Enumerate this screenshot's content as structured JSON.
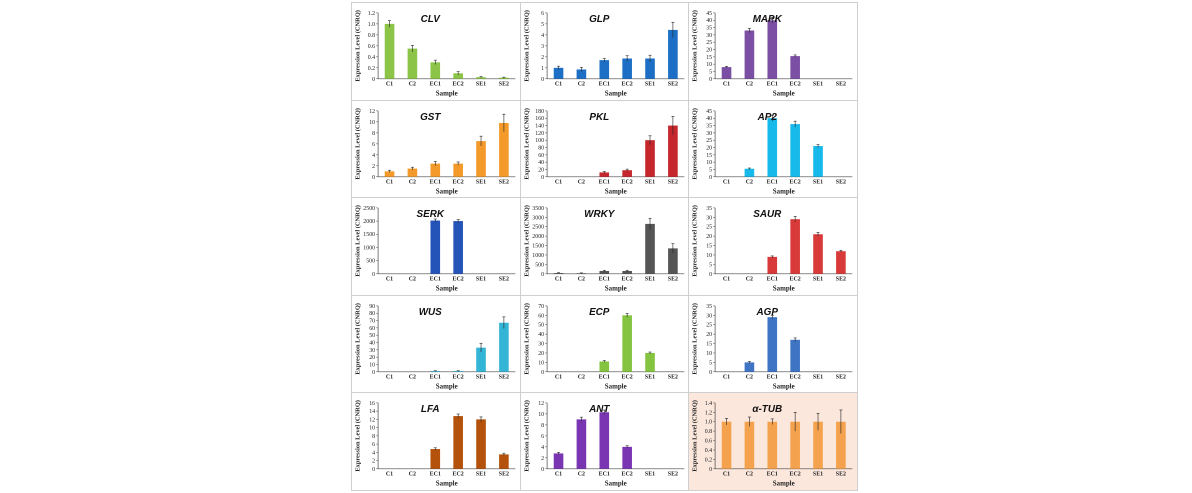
{
  "figure": {
    "ylabel": "Expression Level (CNRQ)",
    "xlabel": "Sample",
    "categories": [
      "C1",
      "C2",
      "EC1",
      "EC2",
      "SE1",
      "SE2"
    ]
  },
  "chart_data": [
    {
      "type": "bar",
      "title": "CLV",
      "categories": [
        "C1",
        "C2",
        "EC1",
        "EC2",
        "SE1",
        "SE2"
      ],
      "values": [
        1.0,
        0.55,
        0.3,
        0.1,
        0.03,
        0.02
      ],
      "errors": [
        0.06,
        0.06,
        0.04,
        0.03,
        0.01,
        0.01
      ],
      "ylim": [
        0,
        1.2
      ],
      "yticks": [
        "0",
        "0.2",
        "0.4",
        "0.6",
        "0.8",
        "1.0",
        "1.2"
      ],
      "color": "#8cc447",
      "xlabel": "Sample",
      "ylabel": "Expression Level (CNRQ)"
    },
    {
      "type": "bar",
      "title": "GLP",
      "categories": [
        "C1",
        "C2",
        "EC1",
        "EC2",
        "SE1",
        "SE2"
      ],
      "values": [
        1.0,
        0.85,
        1.7,
        1.85,
        1.85,
        4.45
      ],
      "errors": [
        0.15,
        0.2,
        0.15,
        0.25,
        0.3,
        0.7
      ],
      "ylim": [
        0,
        6
      ],
      "yticks": [
        "0",
        "1",
        "2",
        "3",
        "4",
        "5",
        "6"
      ],
      "color": "#1c6fc4",
      "xlabel": "Sample",
      "ylabel": "Expression Level (CNRQ)"
    },
    {
      "type": "bar",
      "title": "MAPK",
      "categories": [
        "C1",
        "C2",
        "EC1",
        "EC2",
        "SE1",
        "SE2"
      ],
      "values": [
        8,
        33,
        40,
        15.5,
        0,
        0
      ],
      "errors": [
        0.5,
        1.5,
        2,
        0.8,
        0,
        0
      ],
      "ylim": [
        0,
        45
      ],
      "yticks": [
        "0",
        "5",
        "10",
        "15",
        "20",
        "25",
        "30",
        "35",
        "40",
        "45"
      ],
      "color": "#7b4fa3",
      "xlabel": "Sample",
      "ylabel": "Expression Level (CNRQ)"
    },
    {
      "type": "bar",
      "title": "GST",
      "categories": [
        "C1",
        "C2",
        "EC1",
        "EC2",
        "SE1",
        "SE2"
      ],
      "values": [
        1.0,
        1.5,
        2.4,
        2.4,
        6.5,
        9.8
      ],
      "errors": [
        0.2,
        0.25,
        0.4,
        0.3,
        0.9,
        1.6
      ],
      "ylim": [
        0,
        12
      ],
      "yticks": [
        "0",
        "2",
        "4",
        "6",
        "8",
        "10",
        "12"
      ],
      "color": "#f39a2b",
      "xlabel": "Sample",
      "ylabel": "Expression Level (CNRQ)"
    },
    {
      "type": "bar",
      "title": "PKL",
      "categories": [
        "C1",
        "C2",
        "EC1",
        "EC2",
        "SE1",
        "SE2"
      ],
      "values": [
        0,
        0,
        12,
        18,
        100,
        140
      ],
      "errors": [
        0,
        0,
        3,
        3,
        12,
        25
      ],
      "ylim": [
        0,
        180
      ],
      "yticks": [
        "0",
        "20",
        "40",
        "60",
        "80",
        "100",
        "120",
        "140",
        "160",
        "180"
      ],
      "color": "#c5272c",
      "xlabel": "Sample",
      "ylabel": "Expression Level (CNRQ)"
    },
    {
      "type": "bar",
      "title": "AP2",
      "categories": [
        "C1",
        "C2",
        "EC1",
        "EC2",
        "SE1",
        "SE2"
      ],
      "values": [
        0,
        5.5,
        40,
        36,
        21,
        0
      ],
      "errors": [
        0,
        0.5,
        2,
        2,
        1,
        0
      ],
      "ylim": [
        0,
        45
      ],
      "yticks": [
        "0",
        "5",
        "10",
        "15",
        "20",
        "25",
        "30",
        "35",
        "40",
        "45"
      ],
      "color": "#17b8ea",
      "xlabel": "Sample",
      "ylabel": "Expression Level (CNRQ)"
    },
    {
      "type": "bar",
      "title": "SERK",
      "categories": [
        "C1",
        "C2",
        "EC1",
        "EC2",
        "SE1",
        "SE2"
      ],
      "values": [
        0,
        0,
        2020,
        2000,
        0,
        0
      ],
      "errors": [
        0,
        0,
        60,
        60,
        0,
        0
      ],
      "ylim": [
        0,
        2500
      ],
      "yticks": [
        "0",
        "500",
        "1000",
        "1500",
        "2000",
        "2500"
      ],
      "color": "#2554b8",
      "xlabel": "Sample",
      "ylabel": "Expression Level (CNRQ)"
    },
    {
      "type": "bar",
      "title": "WRKY",
      "categories": [
        "C1",
        "C2",
        "EC1",
        "EC2",
        "SE1",
        "SE2"
      ],
      "values": [
        40,
        30,
        150,
        150,
        2650,
        1350
      ],
      "errors": [
        20,
        20,
        40,
        40,
        300,
        250
      ],
      "ylim": [
        0,
        3500
      ],
      "yticks": [
        "0",
        "500",
        "1000",
        "1500",
        "2000",
        "2500",
        "3000",
        "3500"
      ],
      "color": "#555555",
      "xlabel": "Sample",
      "ylabel": "Expression Level (CNRQ)"
    },
    {
      "type": "bar",
      "title": "SAUR",
      "categories": [
        "C1",
        "C2",
        "EC1",
        "EC2",
        "SE1",
        "SE2"
      ],
      "values": [
        0,
        0,
        9,
        29,
        21,
        12
      ],
      "errors": [
        0,
        0,
        0.5,
        1.5,
        1,
        0.5
      ],
      "ylim": [
        0,
        35
      ],
      "yticks": [
        "0",
        "5",
        "10",
        "15",
        "20",
        "25",
        "30",
        "35"
      ],
      "color": "#d83a3a",
      "xlabel": "Sample",
      "ylabel": "Expression Level (CNRQ)"
    },
    {
      "type": "bar",
      "title": "WUS",
      "categories": [
        "C1",
        "C2",
        "EC1",
        "EC2",
        "SE1",
        "SE2"
      ],
      "values": [
        0,
        0,
        1,
        1,
        33,
        67
      ],
      "errors": [
        0,
        0,
        0.5,
        0.5,
        6,
        8
      ],
      "ylim": [
        0,
        90
      ],
      "yticks": [
        "0",
        "10",
        "20",
        "30",
        "40",
        "50",
        "60",
        "70",
        "80",
        "90"
      ],
      "color": "#35b5d6",
      "xlabel": "Sample",
      "ylabel": "Expression Level (CNRQ)"
    },
    {
      "type": "bar",
      "title": "ECP",
      "categories": [
        "C1",
        "C2",
        "EC1",
        "EC2",
        "SE1",
        "SE2"
      ],
      "values": [
        0,
        0,
        11,
        60,
        20,
        0
      ],
      "errors": [
        0,
        0,
        1,
        2,
        1,
        0
      ],
      "ylim": [
        0,
        70
      ],
      "yticks": [
        "0",
        "10",
        "20",
        "30",
        "40",
        "50",
        "60",
        "70"
      ],
      "color": "#84c441",
      "xlabel": "Sample",
      "ylabel": "Expression Level (CNRQ)"
    },
    {
      "type": "bar",
      "title": "AGP",
      "categories": [
        "C1",
        "C2",
        "EC1",
        "EC2",
        "SE1",
        "SE2"
      ],
      "values": [
        0,
        5,
        29,
        17,
        0,
        0
      ],
      "errors": [
        0,
        0.5,
        1,
        1,
        0,
        0
      ],
      "ylim": [
        0,
        35
      ],
      "yticks": [
        "0",
        "5",
        "10",
        "15",
        "20",
        "25",
        "30",
        "35"
      ],
      "color": "#3e74c3",
      "xlabel": "Sample",
      "ylabel": "Expression Level (CNRQ)"
    },
    {
      "type": "bar",
      "title": "LFA",
      "categories": [
        "C1",
        "C2",
        "EC1",
        "EC2",
        "SE1",
        "SE2"
      ],
      "values": [
        0,
        0,
        4.8,
        12.8,
        12,
        3.5
      ],
      "errors": [
        0,
        0,
        0.3,
        0.5,
        0.6,
        0.3
      ],
      "ylim": [
        0,
        16
      ],
      "yticks": [
        "0",
        "2",
        "4",
        "6",
        "8",
        "10",
        "12",
        "14",
        "16"
      ],
      "color": "#b4520c",
      "xlabel": "Sample",
      "ylabel": "Expression Level (CNRQ)"
    },
    {
      "type": "bar",
      "title": "ANT",
      "categories": [
        "C1",
        "C2",
        "EC1",
        "EC2",
        "SE1",
        "SE2"
      ],
      "values": [
        2.8,
        9,
        10.3,
        4,
        0,
        0
      ],
      "errors": [
        0.2,
        0.4,
        0.4,
        0.2,
        0,
        0
      ],
      "ylim": [
        0,
        12
      ],
      "yticks": [
        "0",
        "2",
        "4",
        "6",
        "8",
        "10",
        "12"
      ],
      "color": "#7a35b3",
      "xlabel": "Sample",
      "ylabel": "Expression Level (CNRQ)"
    },
    {
      "type": "bar",
      "title": "α-TUB",
      "categories": [
        "C1",
        "C2",
        "EC1",
        "EC2",
        "SE1",
        "SE2"
      ],
      "values": [
        1.0,
        1.0,
        1.0,
        1.0,
        1.0,
        1.0
      ],
      "errors": [
        0.07,
        0.1,
        0.06,
        0.2,
        0.18,
        0.25
      ],
      "ylim": [
        0,
        1.4
      ],
      "yticks": [
        "0",
        "0.2",
        "0.4",
        "0.6",
        "0.8",
        "1.0",
        "1.2",
        "1.4"
      ],
      "color": "#f4a24d",
      "background": "#fbe7dc",
      "xlabel": "Sample",
      "ylabel": "Expression Level (CNRQ)"
    }
  ]
}
